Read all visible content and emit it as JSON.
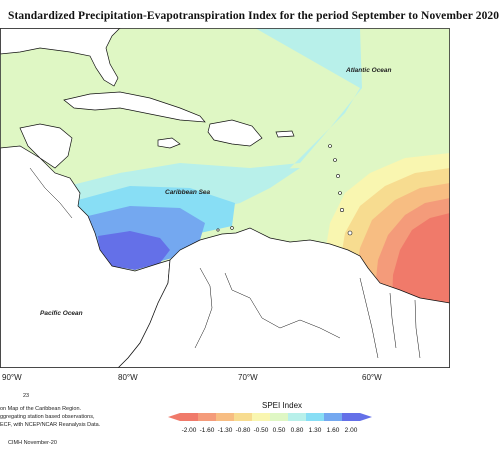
{
  "title": "Standardized Precipitation-Evapotranspiration Index for the period September to November 2020",
  "map_labels": {
    "atlantic": "Atlantic Ocean",
    "caribbean": "Caribbean Sea",
    "pacific": "Pacific Ocean"
  },
  "longitude_labels": [
    "90°W",
    "80°W",
    "70°W",
    "60°W"
  ],
  "footer": {
    "page_number": "23",
    "caption_line1": "on Map of the Caribbean Region.",
    "caption_line2": "ggregating station based observations,",
    "caption_line3": "ECF, with NCEP/NCAR Reanalysis Data.",
    "credit": "CIMH November-20"
  },
  "legend": {
    "title": "SPEI Index",
    "ticks": [
      "-2.00",
      "-1.60",
      "-1.30",
      "-0.80",
      "-0.50",
      "0.50",
      "0.80",
      "1.30",
      "1.60",
      "2.00"
    ],
    "colors": [
      "#f07a6a",
      "#f49b7a",
      "#f7bd82",
      "#f7dc90",
      "#f9f6b0",
      "#dff7c4",
      "#b8f0ea",
      "#88def5",
      "#74a8f0",
      "#6470e8"
    ]
  }
}
